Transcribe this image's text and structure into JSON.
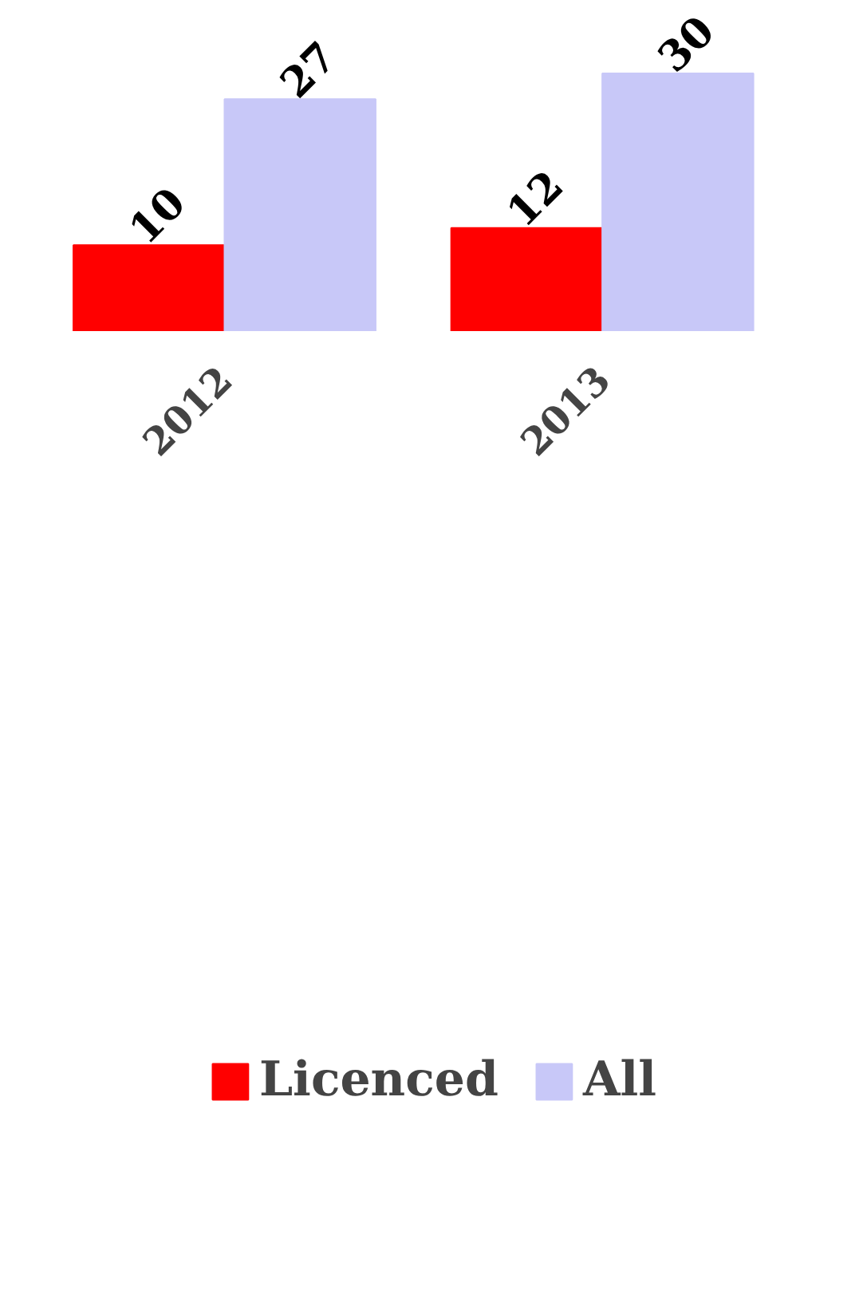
{
  "chart_data": {
    "type": "bar",
    "categories": [
      "2012",
      "2013"
    ],
    "series": [
      {
        "name": "Licenced",
        "color": "#ff0000",
        "values": [
          10,
          12
        ]
      },
      {
        "name": "All",
        "color": "#c8c8f8",
        "values": [
          27,
          30
        ]
      }
    ],
    "data_labels": true,
    "legend": "bottom",
    "grid": false
  }
}
